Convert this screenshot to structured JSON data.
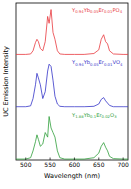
{
  "chart_data": [
    {
      "type": "line",
      "xlim": [
        480,
        710
      ],
      "ylim": [
        0,
        1.1
      ],
      "tick_labels": false,
      "x": [
        480,
        500,
        510,
        515,
        520,
        523,
        526,
        530,
        535,
        540,
        545,
        548,
        552,
        556,
        560,
        565,
        570,
        580,
        600,
        620,
        640,
        650,
        655,
        660,
        664,
        668,
        672,
        680,
        700,
        710
      ],
      "series": [
        {
          "name": "Y0.94Yb0.05Er0.01PO4",
          "color": "#e8383d",
          "values": [
            0.02,
            0.02,
            0.03,
            0.1,
            0.28,
            0.35,
            0.3,
            0.15,
            0.1,
            0.3,
            0.85,
            0.7,
            1.0,
            0.5,
            0.35,
            0.1,
            0.03,
            0.02,
            0.02,
            0.02,
            0.04,
            0.12,
            0.35,
            0.45,
            0.3,
            0.25,
            0.1,
            0.03,
            0.02,
            0.02
          ]
        }
      ]
    },
    {
      "type": "line",
      "xlim": [
        480,
        710
      ],
      "ylim": [
        0,
        1.1
      ],
      "tick_labels": false,
      "ylabel": "UC Emission Intensity",
      "x": [
        480,
        500,
        510,
        515,
        520,
        523,
        526,
        530,
        535,
        540,
        545,
        548,
        552,
        556,
        560,
        565,
        570,
        580,
        600,
        620,
        640,
        650,
        655,
        660,
        664,
        668,
        672,
        680,
        700,
        710
      ],
      "series": [
        {
          "name": "Y0.94Yb0.05Er0.01VO4",
          "color": "#3434c8",
          "values": [
            0.02,
            0.02,
            0.04,
            0.2,
            0.5,
            0.75,
            0.65,
            0.5,
            0.2,
            0.35,
            0.8,
            0.95,
            0.9,
            0.6,
            0.25,
            0.08,
            0.03,
            0.02,
            0.02,
            0.02,
            0.03,
            0.08,
            0.18,
            0.22,
            0.15,
            0.1,
            0.05,
            0.02,
            0.02,
            0.02
          ]
        }
      ]
    },
    {
      "type": "line",
      "xlim": [
        480,
        710
      ],
      "ylim": [
        0,
        1.1
      ],
      "tick_labels": "x",
      "xlabel": "Wavelength (nm)",
      "xticks": [
        500,
        550,
        600,
        650,
        700
      ],
      "x": [
        480,
        500,
        510,
        515,
        520,
        523,
        526,
        530,
        535,
        540,
        545,
        548,
        552,
        556,
        560,
        565,
        570,
        580,
        600,
        620,
        640,
        650,
        655,
        660,
        664,
        668,
        672,
        680,
        700,
        710
      ],
      "series": [
        {
          "name": "Y1.88Yb0.1Er0.02O3",
          "color": "#2e9e3a",
          "values": [
            0.02,
            0.02,
            0.05,
            0.2,
            0.4,
            0.55,
            0.45,
            0.3,
            0.35,
            0.6,
            0.5,
            0.95,
            0.7,
            0.6,
            0.5,
            0.2,
            0.05,
            0.02,
            0.02,
            0.02,
            0.05,
            0.15,
            0.3,
            0.38,
            0.28,
            0.2,
            0.08,
            0.03,
            0.02,
            0.02
          ]
        }
      ]
    }
  ]
}
